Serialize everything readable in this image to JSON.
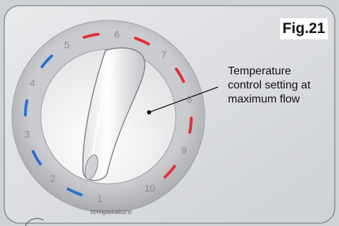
{
  "figure_label": "Fig.21",
  "callout": {
    "lines": [
      "Temperature",
      "control setting at",
      "maximum flow"
    ]
  },
  "dial": {
    "numbers": [
      "1",
      "2",
      "3",
      "4",
      "5",
      "6",
      "7",
      "8",
      "9",
      "10"
    ],
    "label": "temperature",
    "cool_color": "#2a6fd1",
    "hot_color": "#e0303a"
  }
}
